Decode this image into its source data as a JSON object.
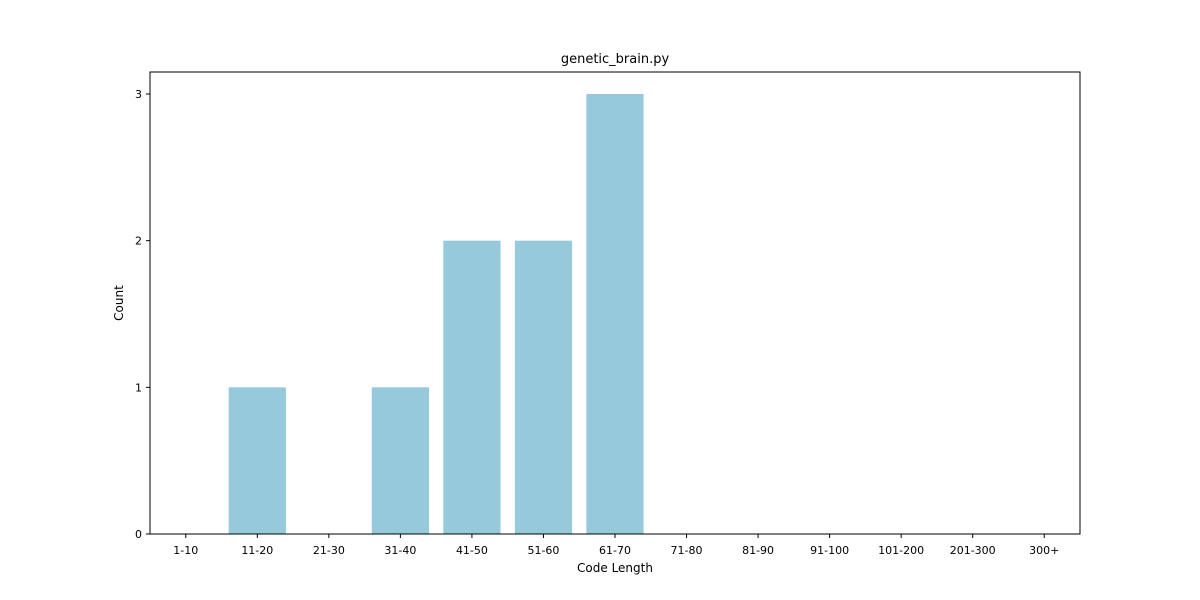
{
  "chart_data": {
    "type": "bar",
    "title": "genetic_brain.py",
    "xlabel": "Code Length",
    "ylabel": "Count",
    "categories": [
      "1-10",
      "11-20",
      "21-30",
      "31-40",
      "41-50",
      "51-60",
      "61-70",
      "71-80",
      "81-90",
      "91-100",
      "101-200",
      "201-300",
      "300+"
    ],
    "values": [
      0,
      1,
      0,
      1,
      2,
      2,
      3,
      0,
      0,
      0,
      0,
      0,
      0
    ],
    "ylim": [
      0,
      3.15
    ],
    "yticks": [
      0,
      1,
      2,
      3
    ],
    "grid": false,
    "legend": "none",
    "colors": {
      "bar": "#96c9dc",
      "axis": "#000000",
      "background": "#ffffff"
    }
  }
}
